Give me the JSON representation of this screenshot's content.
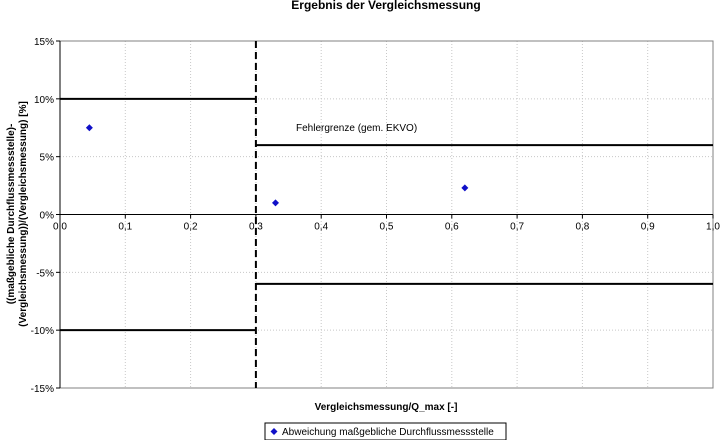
{
  "chart_data": {
    "type": "scatter",
    "title": "Ergebnis der Vergleichsmessung",
    "xlabel": "Vergleichsmessung/Q_max [-]",
    "ylabel_lines": [
      "((maßgebliche Durchflussmessstelle)-",
      "(Vergleichsmessung))/(Vergleichsmessung) [%]"
    ],
    "xlim": [
      0,
      1
    ],
    "ylim": [
      -15,
      15
    ],
    "x_ticks": [
      0,
      0.1,
      0.2,
      0.3,
      0.4,
      0.5,
      0.6,
      0.7,
      0.8,
      0.9,
      1.0
    ],
    "x_tick_labels": [
      "0,0",
      "0,1",
      "0,2",
      "0,3",
      "0,4",
      "0,5",
      "0,6",
      "0,7",
      "0,8",
      "0,9",
      "1,0"
    ],
    "y_ticks": [
      15,
      10,
      5,
      0,
      -5,
      -10,
      -15
    ],
    "y_tick_labels": [
      "15%",
      "10%",
      "5%",
      "0%",
      "-5%",
      "-10%",
      "-15%"
    ],
    "grid": true,
    "legend_position": "bottom",
    "series": [
      {
        "name": "Abweichung maßgebliche Durchflussmessstelle",
        "marker": "diamond",
        "color": "#1010c8",
        "points": [
          {
            "x": 0.045,
            "y": 7.5
          },
          {
            "x": 0.33,
            "y": 1.0
          },
          {
            "x": 0.62,
            "y": 2.3
          }
        ]
      }
    ],
    "error_limits": {
      "annotation": "Fehlergrenze (gem. EKVO)",
      "segments": [
        {
          "x1": 0,
          "x2": 0.3,
          "y": 10
        },
        {
          "x1": 0,
          "x2": 0.3,
          "y": -10
        },
        {
          "x1": 0.3,
          "x2": 1.0,
          "y": 6
        },
        {
          "x1": 0.3,
          "x2": 1.0,
          "y": -6
        }
      ],
      "divider_x": 0.3
    }
  }
}
